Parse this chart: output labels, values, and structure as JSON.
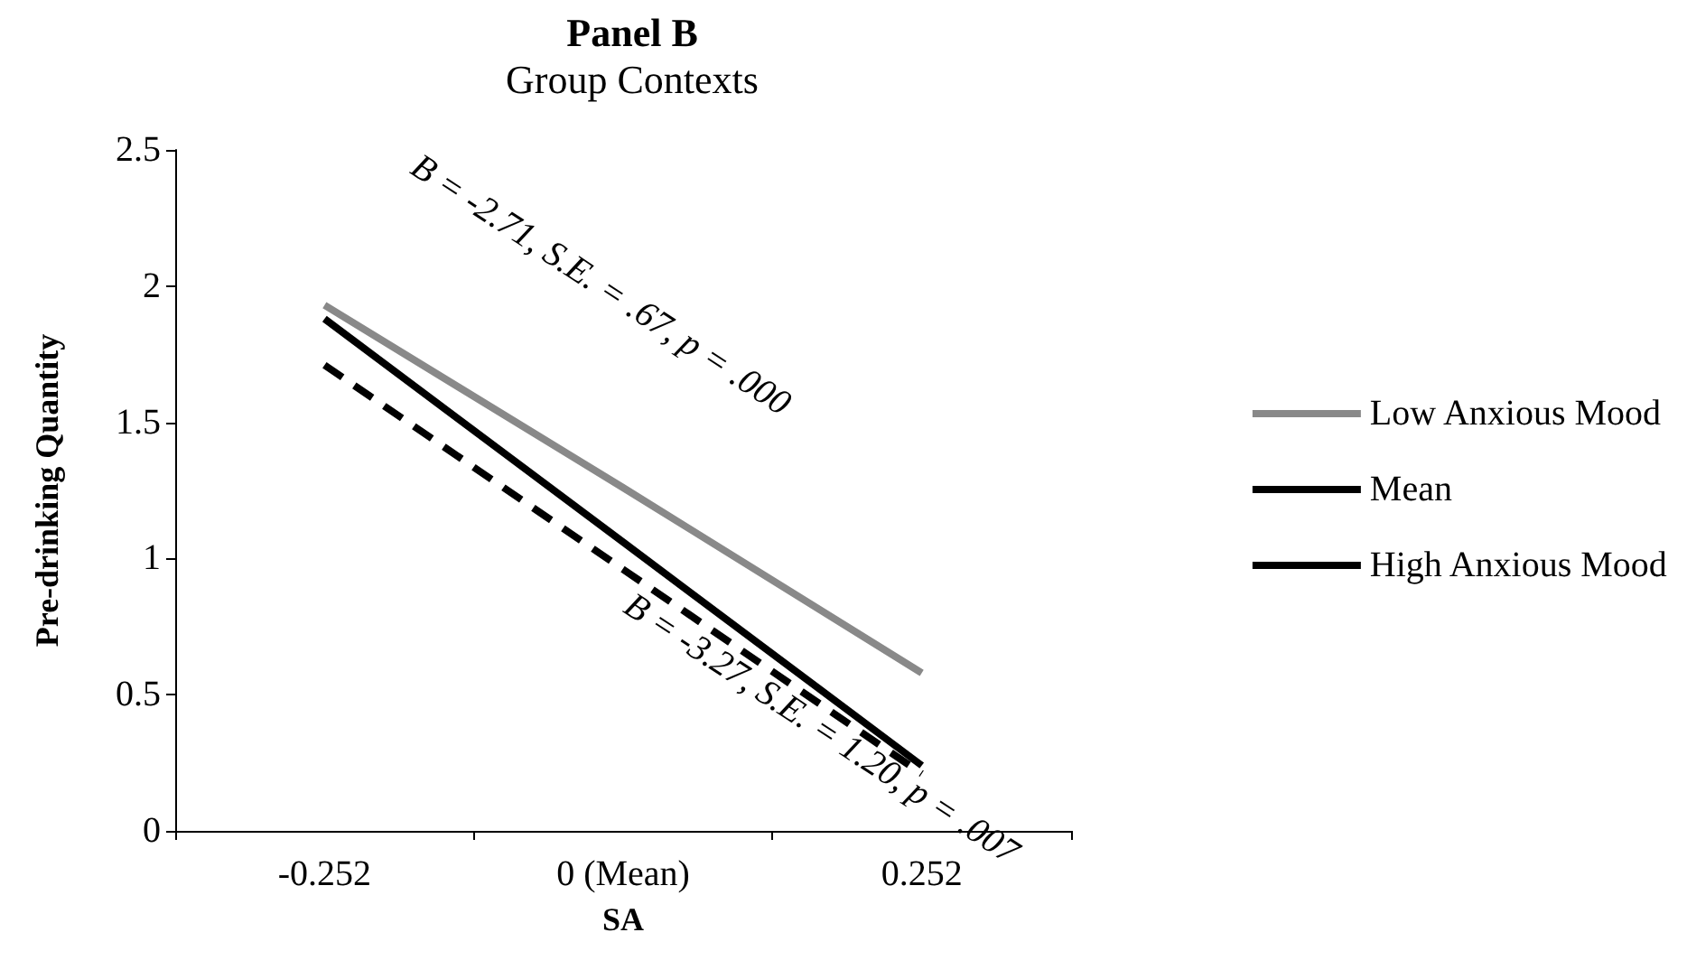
{
  "chart_data": {
    "type": "line",
    "title": "Panel B",
    "subtitle": "Group Contexts",
    "xlabel": "SA",
    "ylabel": "Pre-drinking Quantity",
    "categories": [
      "-0.252",
      "0 (Mean)",
      "0.252"
    ],
    "series": [
      {
        "name": "Low Anxious Mood",
        "color": "#898989",
        "line_style": "solid",
        "values": [
          1.93,
          1.26,
          0.58
        ]
      },
      {
        "name": "Mean",
        "color": "#000000",
        "line_style": "dashed",
        "values": [
          1.71,
          0.96,
          0.21
        ]
      },
      {
        "name": "High Anxious Mood",
        "color": "#000000",
        "line_style": "solid",
        "values": [
          1.88,
          1.06,
          0.24
        ]
      }
    ],
    "ylim": [
      0,
      2.5
    ],
    "yticks": [
      0,
      0.5,
      1,
      1.5,
      2,
      2.5
    ],
    "grid": false,
    "legend": "right",
    "marker": "none",
    "annotations": [
      "B = -2.71, S.E. = .67, p = .000",
      "B = -3.27, S.E. = 1.20, p = .007"
    ]
  }
}
